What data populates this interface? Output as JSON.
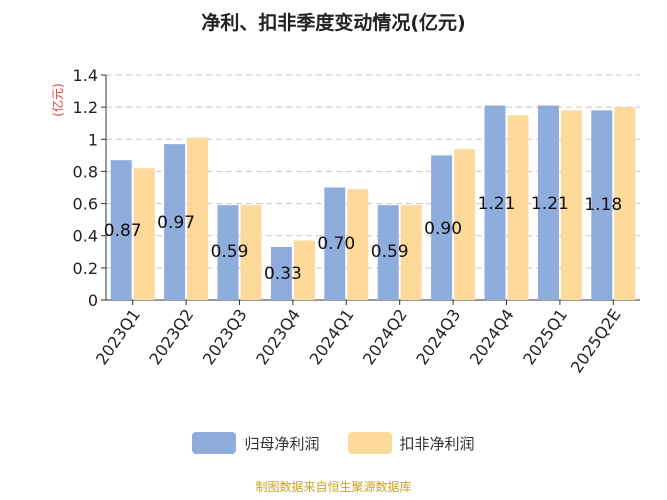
{
  "title": "净利、扣非季度变动情况(亿元)",
  "source": "制图数据来自恒生聚源数据库",
  "colors": {
    "series1": "#8eacdc",
    "series2": "#fdd99a",
    "ylabel": "#e0413a",
    "source": "#c9a227"
  },
  "chart_data": {
    "type": "bar",
    "title": "净利、扣非季度变动情况(亿元)",
    "ylabel": "(亿元)",
    "xlabel": "",
    "ylim": [
      0,
      1.4
    ],
    "yticks": [
      "0",
      "0.2",
      "0.4",
      "0.6",
      "0.8",
      "1",
      "1.2",
      "1.4"
    ],
    "grid": true,
    "legend_position": "bottom",
    "categories": [
      "2023Q1",
      "2023Q2",
      "2023Q3",
      "2023Q4",
      "2024Q1",
      "2024Q2",
      "2024Q3",
      "2024Q4",
      "2025Q1",
      "2025Q2E"
    ],
    "series": [
      {
        "name": "归母净利润",
        "values": [
          0.87,
          0.97,
          0.59,
          0.33,
          0.7,
          0.59,
          0.9,
          1.21,
          1.21,
          1.18
        ],
        "labels": [
          "0.87",
          "0.97",
          "0.59",
          "0.33",
          "0.70",
          "0.59",
          "0.90",
          "1.21",
          "1.21",
          "1.18"
        ]
      },
      {
        "name": "扣非净利润",
        "values": [
          0.82,
          1.01,
          0.59,
          0.37,
          0.69,
          0.59,
          0.94,
          1.15,
          1.18,
          1.2
        ]
      }
    ]
  }
}
